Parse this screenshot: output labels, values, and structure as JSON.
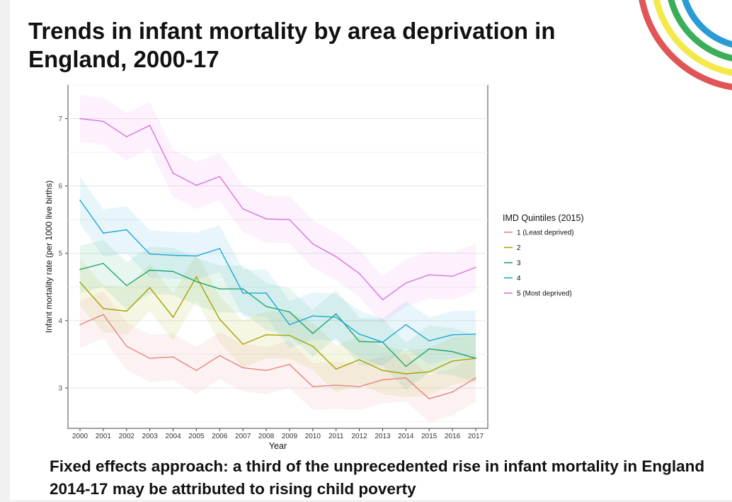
{
  "slide": {
    "title": "Trends in infant mortality by area deprivation in England, 2000-17",
    "footer": "Fixed effects approach: a third of the unprecedented rise in infant mortality in England 2014-17 may be attributed to rising child poverty"
  },
  "decor_colors": [
    "#e05555",
    "#f4e94a",
    "#3cae5a",
    "#2a9bd6"
  ],
  "chart_data": {
    "type": "line",
    "title": "",
    "xlabel": "Year",
    "ylabel": "Infant mortality rate (per 1000 live births)",
    "xlim": [
      2000,
      2017
    ],
    "ylim": [
      2.4,
      7.5
    ],
    "yticks": [
      3,
      4,
      5,
      6,
      7
    ],
    "grid": true,
    "categories": [
      "2000",
      "2001",
      "2002",
      "2003",
      "2004",
      "2005",
      "2006",
      "2007",
      "2008",
      "2009",
      "2010",
      "2011",
      "2012",
      "2013",
      "2014",
      "2015",
      "2016",
      "2017"
    ],
    "legend": {
      "title": "IMD Quintiles (2015)",
      "position": "right"
    },
    "band_halfwidth": 0.35,
    "series": [
      {
        "name": "1 (Least deprived)",
        "color": "#e8837c",
        "values": [
          3.94,
          4.09,
          3.62,
          3.44,
          3.46,
          3.26,
          3.48,
          3.3,
          3.26,
          3.35,
          3.02,
          3.04,
          3.02,
          3.12,
          3.15,
          2.84,
          2.94,
          3.15
        ]
      },
      {
        "name": "2",
        "color": "#a3a300",
        "values": [
          4.57,
          4.18,
          4.14,
          4.49,
          4.05,
          4.65,
          4.02,
          3.65,
          3.79,
          3.78,
          3.62,
          3.28,
          3.42,
          3.26,
          3.21,
          3.24,
          3.4,
          3.44
        ]
      },
      {
        "name": "3",
        "color": "#1fa66c",
        "values": [
          4.76,
          4.85,
          4.52,
          4.75,
          4.73,
          4.58,
          4.47,
          4.47,
          4.21,
          4.13,
          3.81,
          4.1,
          3.69,
          3.68,
          3.32,
          3.58,
          3.54,
          3.44
        ]
      },
      {
        "name": "4",
        "color": "#1ea7d6",
        "values": [
          5.79,
          5.3,
          5.35,
          4.99,
          4.97,
          4.96,
          5.07,
          4.41,
          4.41,
          3.94,
          4.07,
          4.05,
          3.8,
          3.68,
          3.94,
          3.7,
          3.79,
          3.8
        ]
      },
      {
        "name": "5 (Most deprived)",
        "color": "#de72de",
        "values": [
          7.0,
          6.96,
          6.73,
          6.9,
          6.19,
          6.01,
          6.14,
          5.66,
          5.51,
          5.5,
          5.14,
          4.95,
          4.7,
          4.31,
          4.56,
          4.68,
          4.66,
          4.79
        ]
      }
    ]
  }
}
